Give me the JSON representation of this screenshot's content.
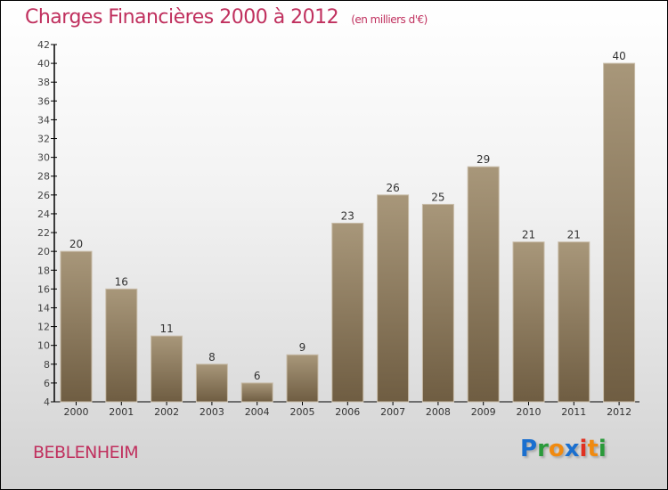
{
  "chart_data": {
    "type": "bar",
    "title": "Charges Financières 2000 à 2012",
    "subtitle": "(en milliers d'€)",
    "categories": [
      "2000",
      "2001",
      "2002",
      "2003",
      "2004",
      "2005",
      "2006",
      "2007",
      "2008",
      "2009",
      "2010",
      "2011",
      "2012"
    ],
    "values": [
      20,
      16,
      11,
      8,
      6,
      9,
      23,
      26,
      25,
      29,
      21,
      21,
      40
    ],
    "ylim": [
      4,
      42
    ],
    "yticks": [
      4,
      6,
      8,
      10,
      12,
      14,
      16,
      18,
      20,
      22,
      24,
      26,
      28,
      30,
      32,
      34,
      36,
      38,
      40,
      42
    ],
    "xlabel": "",
    "ylabel": "",
    "grid": false,
    "bar_color": "#8e7a5c"
  },
  "footer": {
    "town": "BEBLENHEIM",
    "logo": "Proxiti"
  }
}
